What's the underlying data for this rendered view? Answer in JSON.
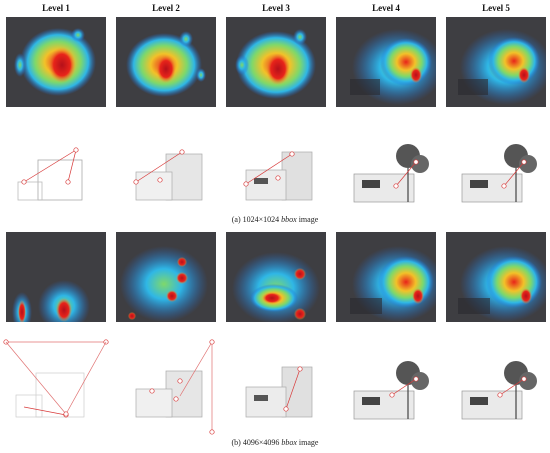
{
  "levels": [
    "Level 1",
    "Level 2",
    "Level 3",
    "Level 4",
    "Level 5"
  ],
  "captions": {
    "a": {
      "prefix": "(a) 1024×1024 ",
      "emph": "bbox",
      "suffix": " image"
    },
    "b": {
      "prefix": "(b) 4096×4096 ",
      "emph": "bbox",
      "suffix": " image"
    }
  },
  "colors": {
    "panel_bg": "#3e3e42",
    "heat_low": "#1f6bd6",
    "heat_mid": "#7fd86a",
    "heat_high": "#e8241a",
    "marker": "#d83a3a",
    "sketch": "#888888"
  }
}
